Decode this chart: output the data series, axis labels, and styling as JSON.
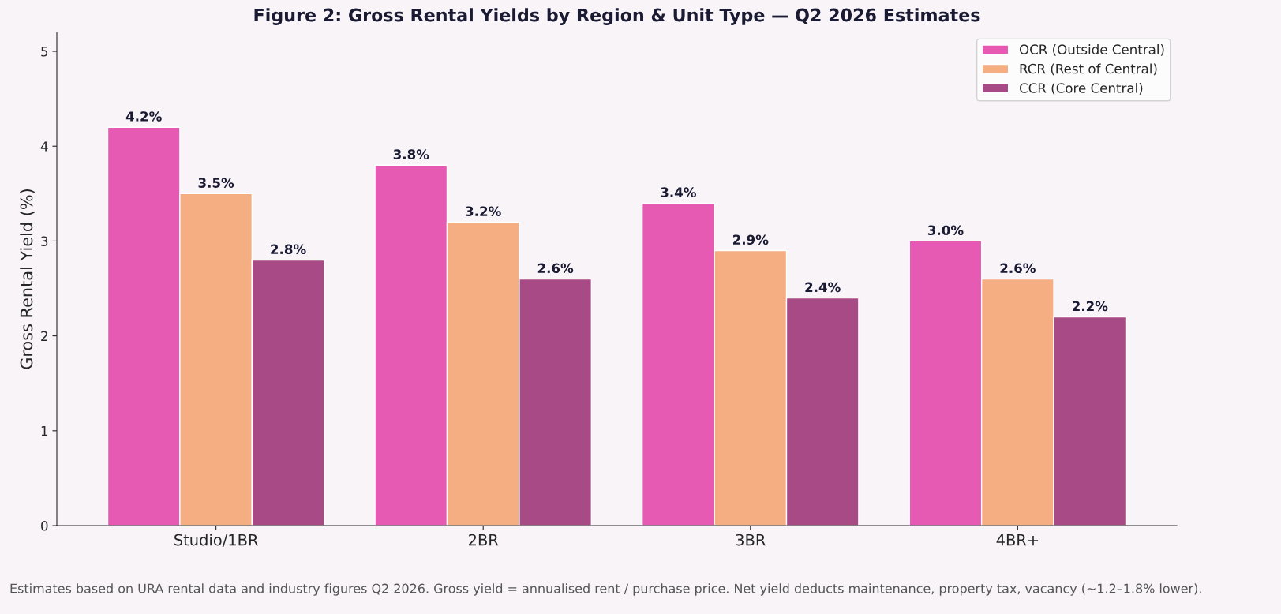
{
  "chart_data": {
    "type": "bar",
    "title": "Figure 2: Gross Rental Yields by Region & Unit Type — Q2 2026 Estimates",
    "ylabel": "Gross Rental Yield (%)",
    "categories": [
      "Studio/1BR",
      "2BR",
      "3BR",
      "4BR+"
    ],
    "series": [
      {
        "name": "OCR (Outside Central)",
        "color": "#e75ab4",
        "values": [
          4.2,
          3.8,
          3.4,
          3.0
        ],
        "value_labels": [
          "4.2%",
          "3.8%",
          "3.4%",
          "3.0%"
        ]
      },
      {
        "name": "RCR (Rest of Central)",
        "color": "#f5ad82",
        "values": [
          3.5,
          3.2,
          2.9,
          2.6
        ],
        "value_labels": [
          "3.5%",
          "3.2%",
          "2.9%",
          "2.6%"
        ]
      },
      {
        "name": "CCR (Core Central)",
        "color": "#a84a86",
        "values": [
          2.8,
          2.6,
          2.4,
          2.2
        ],
        "value_labels": [
          "2.8%",
          "2.6%",
          "2.4%",
          "2.2%"
        ]
      }
    ],
    "ylim": [
      0,
      5.2
    ],
    "yticks": [
      0,
      1,
      2,
      3,
      4,
      5
    ],
    "grid": false,
    "legend": "top right",
    "annotations": [
      "Estimates based on URA rental data and industry figures Q2 2026. Gross yield = annualised rent / purchase price. Net yield deducts maintenance, property tax, vacancy (~1.2–1.8% lower)."
    ]
  }
}
